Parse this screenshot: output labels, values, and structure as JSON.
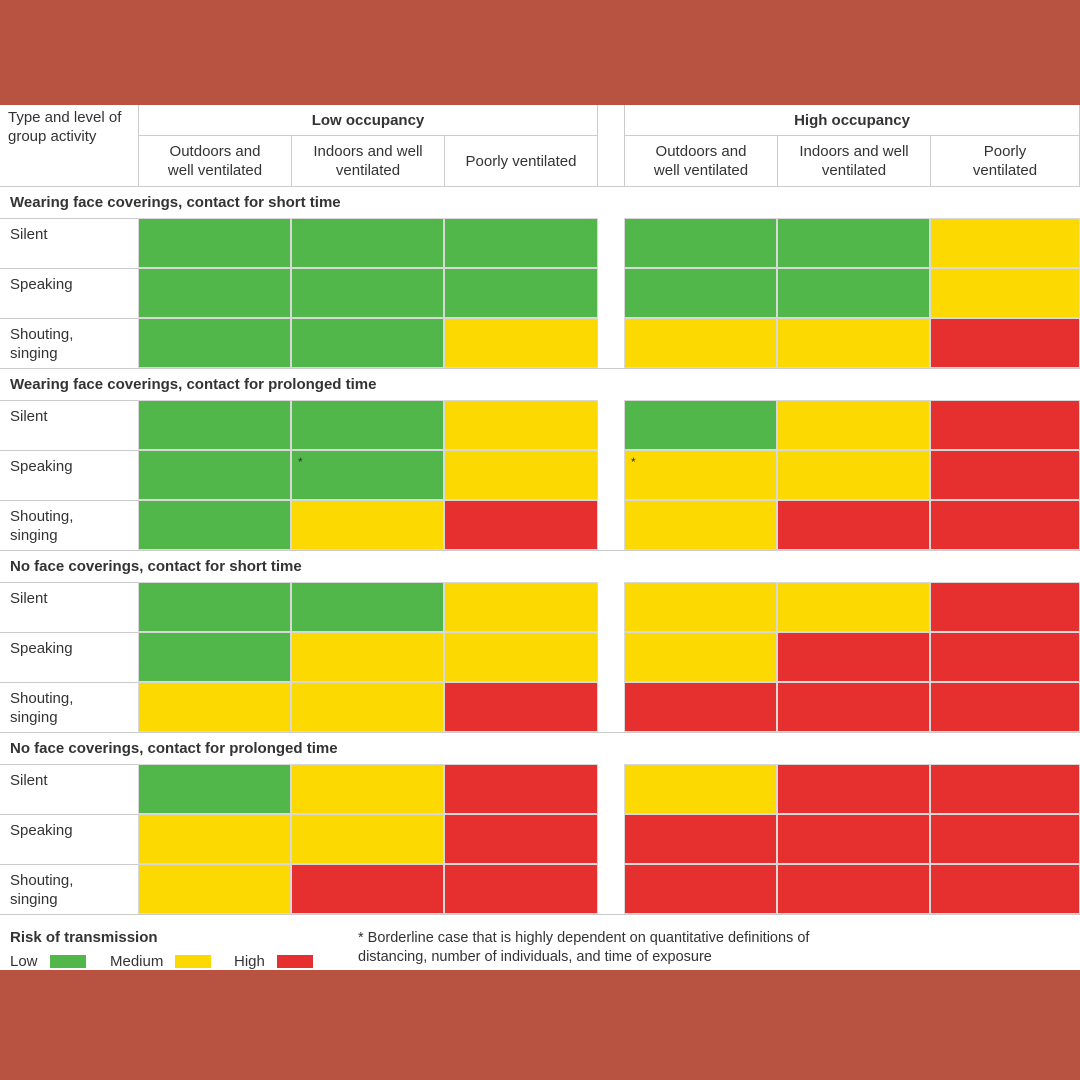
{
  "header": {
    "corner": "Type and level of group activity",
    "groups": [
      {
        "title": "Low occupancy",
        "columns": [
          "Outdoors and well ventilated",
          "Indoors and well ventilated",
          "Poorly ventilated"
        ]
      },
      {
        "title": "High occupancy",
        "columns": [
          "Outdoors and well ventilated",
          "Indoors and well ventilated",
          "Poorly ventilated"
        ]
      }
    ]
  },
  "sections": [
    {
      "title": "Wearing face coverings, contact for short time",
      "rows": [
        {
          "label": "Silent",
          "cells": [
            0,
            0,
            0,
            0,
            0,
            1
          ]
        },
        {
          "label": "Speaking",
          "cells": [
            0,
            0,
            0,
            0,
            0,
            1
          ]
        },
        {
          "label": "Shouting, singing",
          "cells": [
            0,
            0,
            1,
            1,
            1,
            2
          ]
        }
      ]
    },
    {
      "title": "Wearing face coverings, contact for prolonged time",
      "rows": [
        {
          "label": "Silent",
          "cells": [
            0,
            0,
            1,
            0,
            1,
            2
          ]
        },
        {
          "label": "Speaking",
          "cells": [
            0,
            {
              "level": 0,
              "note": "*"
            },
            1,
            {
              "level": 1,
              "note": "*"
            },
            1,
            2
          ]
        },
        {
          "label": "Shouting, singing",
          "cells": [
            0,
            1,
            2,
            1,
            2,
            2
          ]
        }
      ]
    },
    {
      "title": "No face coverings, contact for short time",
      "rows": [
        {
          "label": "Silent",
          "cells": [
            0,
            0,
            1,
            1,
            1,
            2
          ]
        },
        {
          "label": "Speaking",
          "cells": [
            0,
            1,
            1,
            1,
            2,
            2
          ]
        },
        {
          "label": "Shouting, singing",
          "cells": [
            1,
            1,
            2,
            2,
            2,
            2
          ]
        }
      ]
    },
    {
      "title": "No face coverings, contact for prolonged time",
      "rows": [
        {
          "label": "Silent",
          "cells": [
            0,
            1,
            2,
            1,
            2,
            2
          ]
        },
        {
          "label": "Speaking",
          "cells": [
            1,
            1,
            2,
            2,
            2,
            2
          ]
        },
        {
          "label": "Shouting, singing",
          "cells": [
            1,
            2,
            2,
            2,
            2,
            2
          ]
        }
      ]
    }
  ],
  "legend": {
    "title": "Risk of transmission",
    "items": [
      {
        "label": "Low",
        "color": "#52b74a"
      },
      {
        "label": "Medium",
        "color": "#fcd900"
      },
      {
        "label": "High",
        "color": "#e5302f"
      }
    ]
  },
  "footnote": "* Borderline case that is highly dependent on quantitative definitions of distancing, number of individuals, and time of exposure"
}
